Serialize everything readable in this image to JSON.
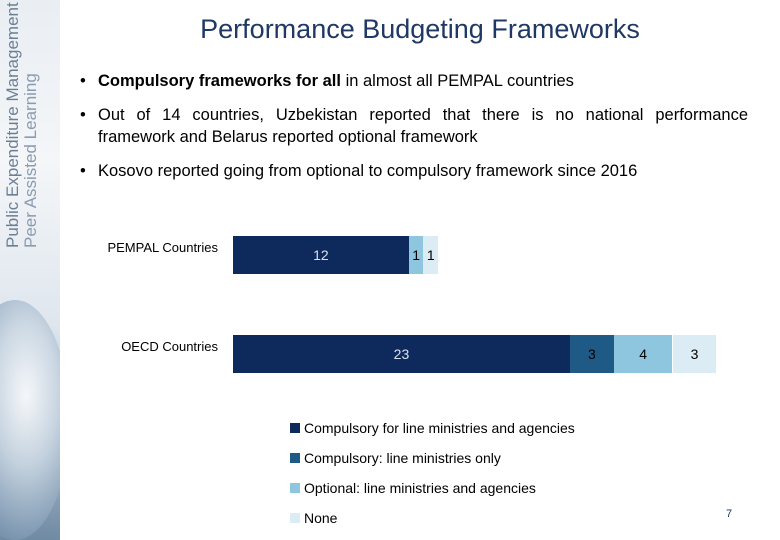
{
  "sidebar": {
    "line1": "Public Expenditure Management",
    "line2": "Peer Assisted Learning"
  },
  "slide": {
    "title": "Performance Budgeting Frameworks",
    "bullet1_bold": "Compulsory frameworks for all",
    "bullet1_rest": " in almost all PEMPAL countries",
    "bullet2": "Out of 14 countries, Uzbekistan reported that there is no national performance framework and Belarus reported optional framework",
    "bullet3": "Kosovo reported going from optional to compulsory framework since 2016",
    "page_number": "7"
  },
  "chart_data": {
    "type": "bar",
    "orientation": "horizontal-stacked",
    "categories": [
      "PEMPAL Countries",
      "OECD Countries"
    ],
    "series": [
      {
        "name": "Compulsory for line ministries and agencies",
        "values": [
          12,
          23
        ],
        "color": "#0e2a5c",
        "label_color": "#d9e1ee"
      },
      {
        "name": "Compulsory: line ministries only",
        "values": [
          0,
          3
        ],
        "color": "#1f5a86",
        "label_color": "#000000"
      },
      {
        "name": "Optional: line ministries and agencies",
        "values": [
          1,
          4
        ],
        "color": "#8ec5df",
        "label_color": "#000000"
      },
      {
        "name": "None",
        "values": [
          1,
          3
        ],
        "color": "#dcecf4",
        "label_color": "#000000"
      }
    ],
    "data_labels": [
      [
        "12",
        "",
        "1",
        "1"
      ],
      [
        "23",
        "3",
        "4",
        "3"
      ]
    ]
  }
}
